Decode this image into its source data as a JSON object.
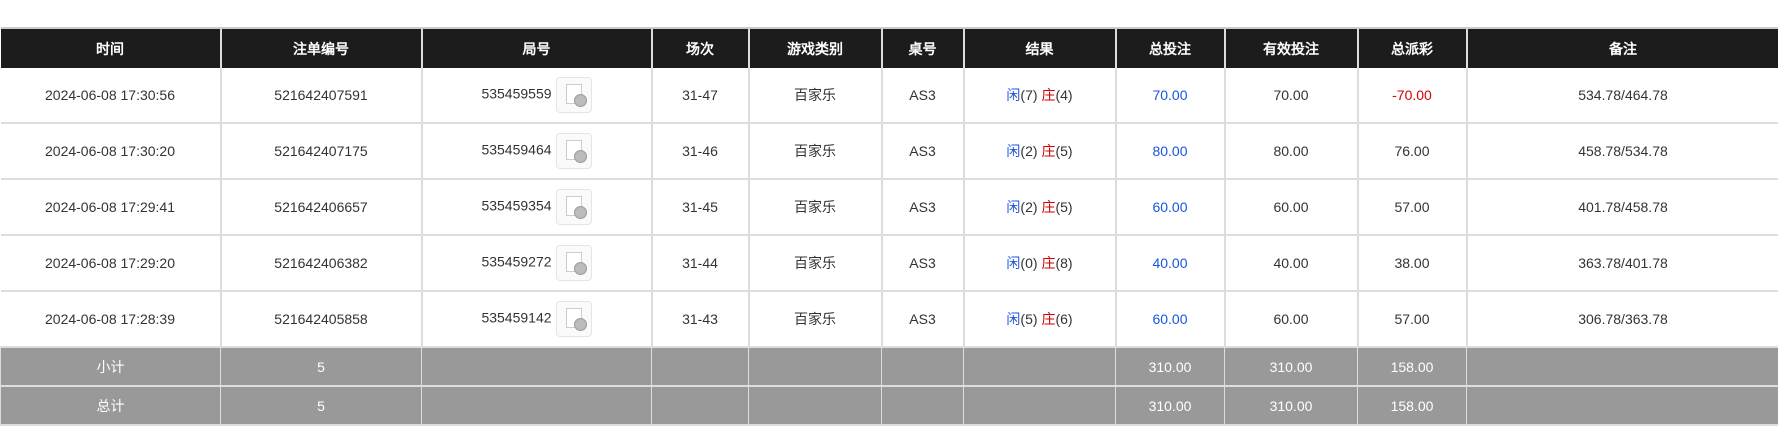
{
  "headers": [
    "时间",
    "注单编号",
    "局号",
    "场次",
    "游戏类别",
    "桌号",
    "结果",
    "总投注",
    "有效投注",
    "总派彩",
    "备注"
  ],
  "rows": [
    {
      "time": "2024-06-08 17:30:56",
      "bet_id": "521642407591",
      "round": "535459559",
      "session": "31-47",
      "game": "百家乐",
      "table": "AS3",
      "player_label": "闲",
      "player_score": "(7)",
      "banker_label": "庄",
      "banker_score": "(4)",
      "total_bet": "70.00",
      "valid_bet": "70.00",
      "payout": "-70.00",
      "payout_negative": true,
      "note": "534.78/464.78"
    },
    {
      "time": "2024-06-08 17:30:20",
      "bet_id": "521642407175",
      "round": "535459464",
      "session": "31-46",
      "game": "百家乐",
      "table": "AS3",
      "player_label": "闲",
      "player_score": "(2)",
      "banker_label": "庄",
      "banker_score": "(5)",
      "total_bet": "80.00",
      "valid_bet": "80.00",
      "payout": "76.00",
      "payout_negative": false,
      "note": "458.78/534.78"
    },
    {
      "time": "2024-06-08 17:29:41",
      "bet_id": "521642406657",
      "round": "535459354",
      "session": "31-45",
      "game": "百家乐",
      "table": "AS3",
      "player_label": "闲",
      "player_score": "(2)",
      "banker_label": "庄",
      "banker_score": "(5)",
      "total_bet": "60.00",
      "valid_bet": "60.00",
      "payout": "57.00",
      "payout_negative": false,
      "note": "401.78/458.78"
    },
    {
      "time": "2024-06-08 17:29:20",
      "bet_id": "521642406382",
      "round": "535459272",
      "session": "31-44",
      "game": "百家乐",
      "table": "AS3",
      "player_label": "闲",
      "player_score": "(0)",
      "banker_label": "庄",
      "banker_score": "(8)",
      "total_bet": "40.00",
      "valid_bet": "40.00",
      "payout": "38.00",
      "payout_negative": false,
      "note": "363.78/401.78"
    },
    {
      "time": "2024-06-08 17:28:39",
      "bet_id": "521642405858",
      "round": "535459142",
      "session": "31-43",
      "game": "百家乐",
      "table": "AS3",
      "player_label": "闲",
      "player_score": "(5)",
      "banker_label": "庄",
      "banker_score": "(6)",
      "total_bet": "60.00",
      "valid_bet": "60.00",
      "payout": "57.00",
      "payout_negative": false,
      "note": "306.78/363.78"
    }
  ],
  "subtotal": {
    "label": "小计",
    "count": "5",
    "total_bet": "310.00",
    "valid_bet": "310.00",
    "payout": "158.00"
  },
  "total": {
    "label": "总计",
    "count": "5",
    "total_bet": "310.00",
    "valid_bet": "310.00",
    "payout": "158.00"
  },
  "icons": {
    "replay": "video-replay-icon"
  },
  "colors": {
    "header_bg": "#1c1c1c",
    "player": "#1a56db",
    "banker": "#d40000",
    "negative": "#d40000",
    "summary_bg": "#999999"
  }
}
